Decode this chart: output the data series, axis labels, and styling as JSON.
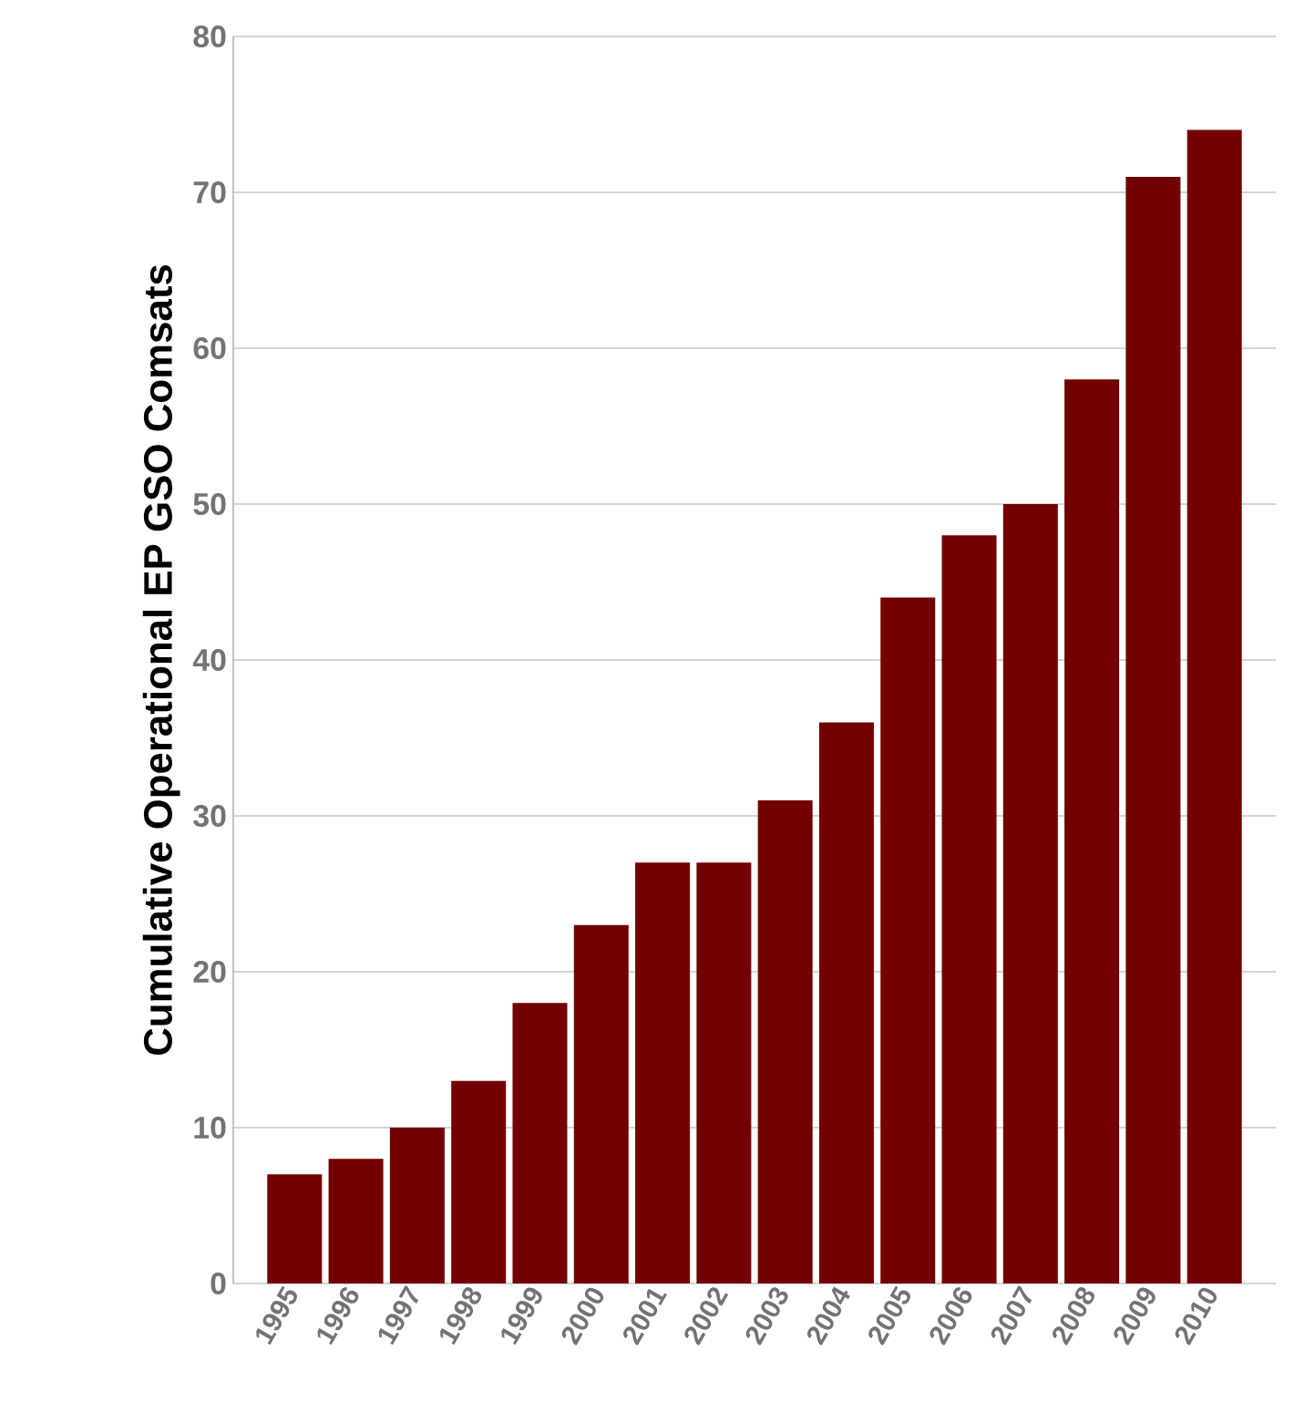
{
  "chart_data": {
    "type": "bar",
    "ylabel": "Cumulative Operational EP GSO Comsats",
    "categories": [
      "1995",
      "1996",
      "1997",
      "1998",
      "1999",
      "2000",
      "2001",
      "2002",
      "2003",
      "2004",
      "2005",
      "2006",
      "2007",
      "2008",
      "2009",
      "2010"
    ],
    "values": [
      7,
      8,
      10,
      13,
      18,
      23,
      27,
      27,
      31,
      36,
      44,
      48,
      50,
      58,
      71,
      74
    ],
    "color": "#720000",
    "ylim": [
      0,
      80
    ],
    "yticks": [
      0,
      10,
      20,
      30,
      40,
      50,
      60,
      70,
      80
    ],
    "grid": "y"
  }
}
